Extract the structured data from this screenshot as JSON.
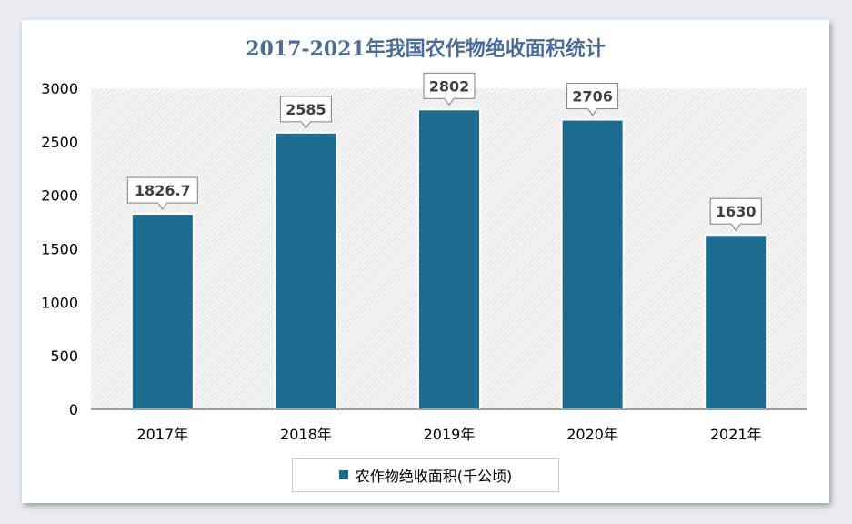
{
  "chart_data": {
    "type": "bar",
    "title": "2017-2021年我国农作物绝收面积统计",
    "categories": [
      "2017年",
      "2018年",
      "2019年",
      "2020年",
      "2021年"
    ],
    "series": [
      {
        "name": "农作物绝收面积(千公顷)",
        "values": [
          1826.7,
          2585,
          2802,
          2706,
          1630
        ]
      }
    ],
    "data_labels": [
      "1826.7",
      "2585",
      "2802",
      "2706",
      "1630"
    ],
    "yticks": [
      "0",
      "500",
      "1000",
      "1500",
      "2000",
      "2500",
      "3000"
    ],
    "ylim": [
      0,
      3000
    ],
    "grid": false,
    "legend": "bottom",
    "color": "#1d6b8f"
  }
}
